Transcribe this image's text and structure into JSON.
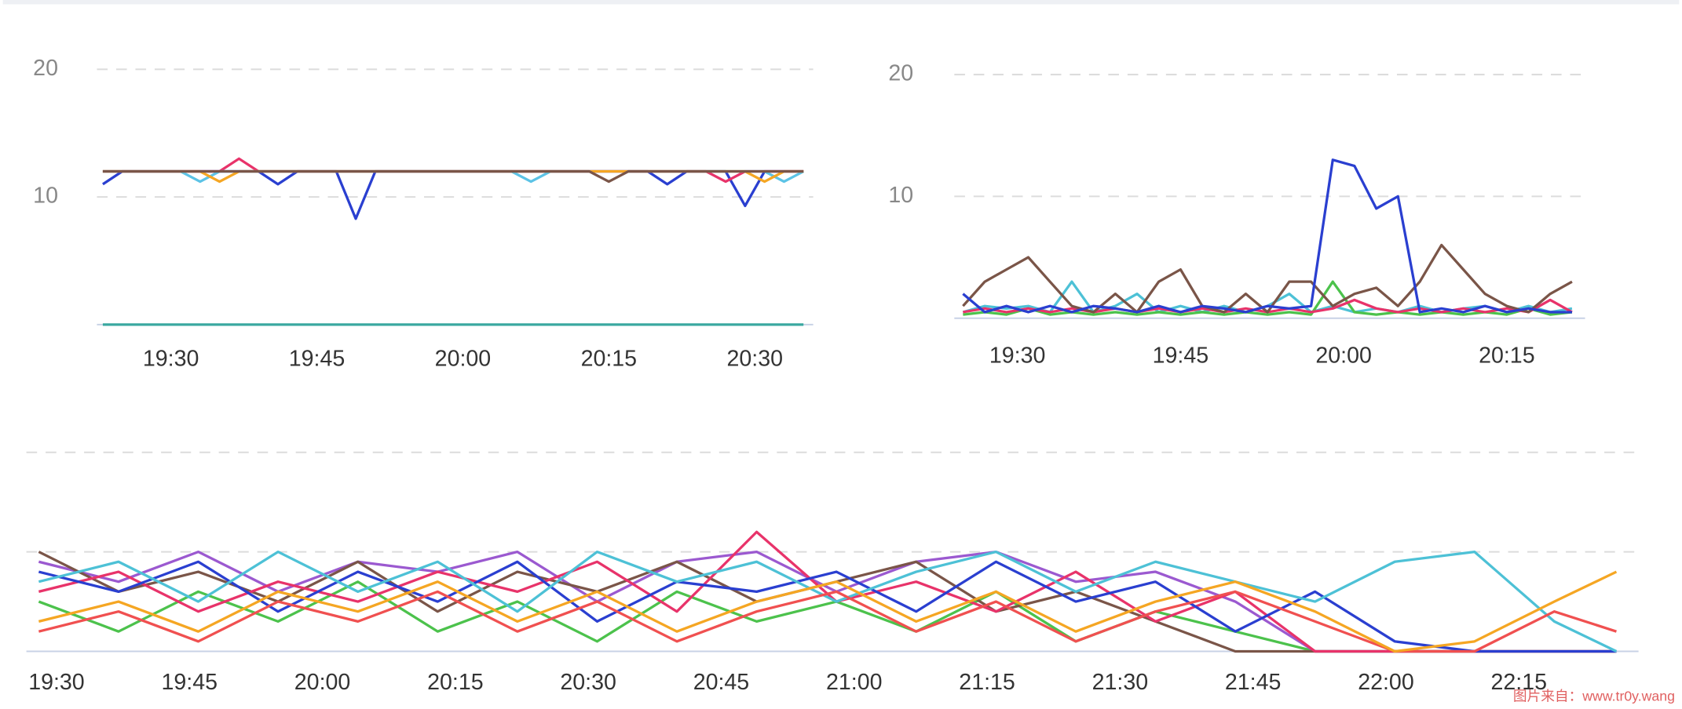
{
  "chart_data": [
    {
      "type": "line",
      "x": [
        1163,
        1165,
        1167,
        1169,
        1171,
        1173,
        1175,
        1177,
        1179,
        1181,
        1183,
        1185,
        1187,
        1189,
        1191,
        1193,
        1195,
        1197,
        1199,
        1201,
        1203,
        1205,
        1207,
        1209,
        1211,
        1213,
        1215,
        1217,
        1219,
        1221,
        1223,
        1225,
        1227,
        1229,
        1231,
        1233,
        1235
      ],
      "xlim": [
        1162.4,
        1236
      ],
      "xticks": [
        {
          "value": 1170,
          "label": "19:30"
        },
        {
          "value": 1185,
          "label": "19:45"
        },
        {
          "value": 1200,
          "label": "20:00"
        },
        {
          "value": 1215,
          "label": "20:15"
        },
        {
          "value": 1230,
          "label": "20:30"
        }
      ],
      "ylim": [
        0,
        22
      ],
      "yticks": [
        10,
        20
      ],
      "grid": true,
      "series": [
        {
          "color": "#2a3fd0",
          "values": [
            11,
            12,
            12,
            12,
            12,
            12,
            12,
            12,
            12,
            11,
            12,
            12,
            12,
            8.3,
            12,
            12,
            12,
            12,
            12,
            12,
            12,
            12,
            12,
            12,
            12,
            12,
            12,
            12,
            12,
            11,
            12,
            12,
            12,
            9.3,
            12,
            12,
            12
          ]
        },
        {
          "color": "#e8336a",
          "values": [
            12,
            12,
            12,
            12,
            12,
            12,
            12,
            13,
            12,
            12,
            12,
            12,
            12,
            12,
            12,
            12,
            12,
            12,
            12,
            12,
            12,
            12,
            12,
            12,
            12,
            12,
            12,
            12,
            12,
            12,
            12,
            12,
            11.2,
            12,
            12,
            12,
            12
          ]
        },
        {
          "color": "#5cc3e6",
          "values": [
            12,
            12,
            12,
            12,
            12,
            11.2,
            12,
            12,
            12,
            12,
            12,
            12,
            12,
            12,
            12,
            12,
            12,
            12,
            12,
            12,
            12,
            12,
            11.2,
            12,
            12,
            12,
            12,
            12,
            12,
            12,
            12,
            12,
            12,
            12,
            12,
            11.2,
            12
          ]
        },
        {
          "color": "#f5a623",
          "values": [
            12,
            12,
            12,
            12,
            12,
            12,
            11.2,
            12,
            12,
            12,
            12,
            12,
            12,
            12,
            12,
            12,
            12,
            12,
            12,
            12,
            12,
            12,
            12,
            12,
            12,
            12,
            12,
            12,
            12,
            12,
            12,
            12,
            12,
            12,
            11.2,
            12,
            12
          ]
        },
        {
          "color": "#7a5548",
          "values": [
            12,
            12,
            12,
            12,
            12,
            12,
            12,
            12,
            12,
            12,
            12,
            12,
            12,
            12,
            12,
            12,
            12,
            12,
            12,
            12,
            12,
            12,
            12,
            12,
            12,
            12,
            11.2,
            12,
            12,
            12,
            12,
            12,
            12,
            12,
            12,
            12,
            12
          ]
        },
        {
          "color": "#3aa8a0",
          "values": [
            0,
            0,
            0,
            0,
            0,
            0,
            0,
            0,
            0,
            0,
            0,
            0,
            0,
            0,
            0,
            0,
            0,
            0,
            0,
            0,
            0,
            0,
            0,
            0,
            0,
            0,
            0,
            0,
            0,
            0,
            0,
            0,
            0,
            0,
            0,
            0,
            0
          ]
        }
      ]
    },
    {
      "type": "line",
      "x": [
        1165,
        1167,
        1169,
        1171,
        1173,
        1175,
        1177,
        1179,
        1181,
        1183,
        1185,
        1187,
        1189,
        1191,
        1193,
        1195,
        1197,
        1199,
        1201,
        1203,
        1205,
        1207,
        1209,
        1211,
        1213,
        1215,
        1217,
        1219,
        1221
      ],
      "xlim": [
        1164.2,
        1222.2
      ],
      "xticks": [
        {
          "value": 1170,
          "label": "19:30"
        },
        {
          "value": 1185,
          "label": "19:45"
        },
        {
          "value": 1200,
          "label": "20:00"
        },
        {
          "value": 1215,
          "label": "20:15"
        }
      ],
      "ylim": [
        0,
        22
      ],
      "yticks": [
        10,
        20
      ],
      "grid": true,
      "series": [
        {
          "color": "#4dc1d6",
          "values": [
            0.5,
            1,
            0.8,
            1,
            0.5,
            3,
            0.5,
            1,
            2,
            0.5,
            1,
            0.5,
            1,
            0.5,
            1,
            2,
            0.5,
            1,
            0.5,
            0.8,
            0.5,
            1,
            0.5,
            0.8,
            1,
            0.5,
            1,
            0.5,
            0.8
          ]
        },
        {
          "color": "#4cc24c",
          "values": [
            0.3,
            0.5,
            0.3,
            0.8,
            0.3,
            0.5,
            0.3,
            0.5,
            0.3,
            0.5,
            0.3,
            0.5,
            0.3,
            0.5,
            0.3,
            0.5,
            0.3,
            3,
            0.5,
            0.3,
            0.5,
            0.3,
            0.5,
            0.3,
            0.5,
            0.3,
            0.8,
            0.3,
            0.5
          ]
        },
        {
          "color": "#e8336a",
          "values": [
            0.5,
            0.8,
            0.5,
            0.8,
            0.5,
            0.8,
            0.5,
            0.8,
            0.5,
            0.8,
            0.5,
            0.8,
            0.5,
            0.8,
            0.5,
            0.8,
            0.5,
            0.8,
            1.5,
            0.8,
            0.5,
            0.8,
            0.5,
            0.8,
            0.5,
            0.8,
            0.5,
            1.5,
            0.5
          ]
        },
        {
          "color": "#7a5548",
          "values": [
            1,
            3,
            4,
            5,
            3,
            1,
            0.5,
            2,
            0.5,
            3,
            4,
            1,
            0.5,
            2,
            0.5,
            3,
            3,
            1,
            2,
            2.5,
            1,
            3,
            6,
            4,
            2,
            1,
            0.5,
            2,
            3
          ]
        },
        {
          "color": "#2a3fd0",
          "values": [
            2,
            0.5,
            1,
            0.5,
            1,
            0.5,
            1,
            0.8,
            0.5,
            1,
            0.5,
            1,
            0.8,
            0.5,
            1,
            0.8,
            1,
            13,
            12.5,
            9,
            10,
            0.5,
            0.8,
            0.5,
            1,
            0.5,
            0.8,
            0.5,
            0.5
          ]
        }
      ]
    },
    {
      "type": "line",
      "x": [
        1168,
        1177,
        1186,
        1195,
        1204,
        1213,
        1222,
        1231,
        1240,
        1249,
        1258,
        1267,
        1276,
        1285,
        1294,
        1303,
        1312,
        1321,
        1330,
        1339,
        1346
      ],
      "xlim": [
        1166.6,
        1348.5
      ],
      "xticks": [
        {
          "value": 1170,
          "label": "19:30"
        },
        {
          "value": 1185,
          "label": "19:45"
        },
        {
          "value": 1200,
          "label": "20:00"
        },
        {
          "value": 1215,
          "label": "20:15"
        },
        {
          "value": 1230,
          "label": "20:30"
        },
        {
          "value": 1245,
          "label": "20:45"
        },
        {
          "value": 1260,
          "label": "21:00"
        },
        {
          "value": 1275,
          "label": "21:15"
        },
        {
          "value": 1290,
          "label": "21:30"
        },
        {
          "value": 1305,
          "label": "21:45"
        },
        {
          "value": 1320,
          "label": "22:00"
        },
        {
          "value": 1335,
          "label": "22:15"
        }
      ],
      "ylim": [
        0,
        22
      ],
      "ygrid": [
        10,
        20
      ],
      "series": [
        {
          "color": "#4cc24c",
          "values": [
            5,
            2,
            6,
            3,
            7,
            2,
            5,
            1,
            6,
            3,
            5,
            2,
            6,
            1,
            4,
            2,
            0,
            0,
            0,
            0,
            0
          ]
        },
        {
          "color": "#9b59d0",
          "values": [
            9,
            7,
            10,
            6,
            9,
            8,
            10,
            5,
            9,
            10,
            6,
            9,
            10,
            7,
            8,
            5,
            0,
            0,
            0,
            0,
            0
          ]
        },
        {
          "color": "#7a5548",
          "values": [
            10,
            6,
            8,
            5,
            9,
            4,
            8,
            6,
            9,
            5,
            7,
            9,
            4,
            6,
            3,
            0,
            0,
            0,
            0,
            0,
            0
          ]
        },
        {
          "color": "#e8336a",
          "values": [
            6,
            8,
            4,
            7,
            5,
            8,
            6,
            9,
            4,
            12,
            5,
            7,
            4,
            8,
            3,
            6,
            0,
            0,
            0,
            0,
            0
          ]
        },
        {
          "color": "#2a3fd0",
          "values": [
            8,
            6,
            9,
            4,
            8,
            5,
            9,
            3,
            7,
            6,
            8,
            4,
            9,
            5,
            7,
            2,
            6,
            1,
            0,
            0,
            0
          ]
        },
        {
          "color": "#4dc1d6",
          "values": [
            7,
            9,
            5,
            10,
            6,
            9,
            4,
            10,
            7,
            9,
            5,
            8,
            10,
            6,
            9,
            7,
            5,
            9,
            10,
            3,
            0
          ]
        },
        {
          "color": "#f05050",
          "values": [
            2,
            4,
            1,
            5,
            3,
            6,
            2,
            5,
            1,
            4,
            6,
            2,
            5,
            1,
            4,
            6,
            3,
            0,
            0,
            4,
            2
          ]
        },
        {
          "color": "#f5a623",
          "values": [
            3,
            5,
            2,
            6,
            4,
            7,
            3,
            6,
            2,
            5,
            7,
            3,
            6,
            2,
            5,
            7,
            4,
            0,
            1,
            5,
            8
          ]
        }
      ]
    }
  ],
  "watermark": "图片来自：www.tr0y.wang"
}
